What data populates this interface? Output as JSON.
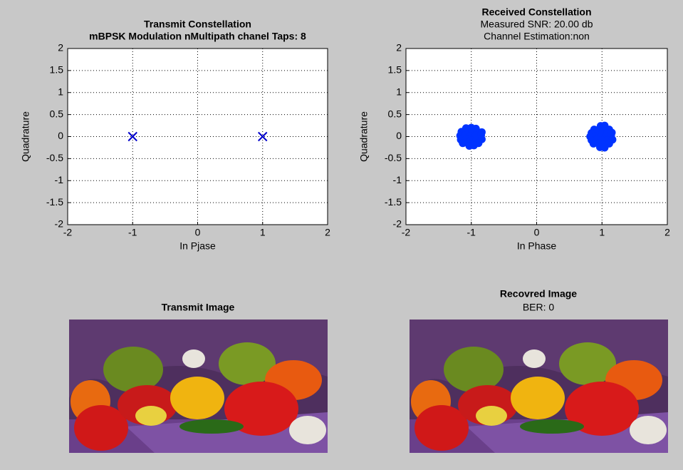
{
  "chart_data": [
    {
      "type": "scatter",
      "title": "Transmit Constellation",
      "subtitles": [
        "mBPSK Modulation nMultipath chanel Taps: 8"
      ],
      "subtitle_bold": true,
      "xlabel": "In Pjase",
      "ylabel": "Quadrature",
      "x": [
        -1,
        1
      ],
      "values": [
        0,
        0
      ],
      "color": "#0000cc",
      "marker": "x",
      "xlim": [
        -2,
        2
      ],
      "xticks": [
        -2,
        -1,
        0,
        1,
        2
      ],
      "ylim": [
        -2,
        2
      ],
      "yticks": [
        -2,
        -1.5,
        -1,
        -0.5,
        0,
        0.5,
        1,
        1.5,
        2
      ],
      "grid": true
    },
    {
      "type": "scatter",
      "title": "Received Constellation",
      "subtitles": [
        "Measured SNR: 20.00 db",
        "Channel Estimation:non"
      ],
      "subtitle_bold": false,
      "xlabel": "In Phase",
      "ylabel": "Quadrature",
      "x": [
        -1.08,
        -1.0,
        -0.93,
        -1.15,
        -1.07,
        -0.99,
        -0.91,
        -0.84,
        -1.17,
        -1.09,
        -1.01,
        -0.93,
        -0.85,
        -1.16,
        -1.08,
        -1.0,
        -0.92,
        -0.84,
        -1.13,
        -1.05,
        -0.97,
        -0.89,
        -1.03,
        -0.96,
        0.98,
        1.04,
        0.88,
        0.96,
        1.04,
        1.11,
        0.84,
        0.92,
        1.0,
        1.08,
        1.15,
        0.82,
        0.9,
        0.98,
        1.06,
        1.14,
        0.84,
        0.92,
        1.0,
        1.08,
        1.16,
        0.87,
        0.95,
        1.03,
        1.11,
        0.97,
        1.04
      ],
      "values": [
        0.19,
        0.2,
        0.18,
        0.11,
        0.12,
        0.1,
        0.11,
        0.1,
        0.02,
        0.03,
        0.01,
        0.02,
        0.03,
        -0.07,
        -0.06,
        -0.08,
        -0.07,
        -0.06,
        -0.15,
        -0.14,
        -0.16,
        -0.15,
        -0.21,
        -0.2,
        0.24,
        0.25,
        0.16,
        0.17,
        0.15,
        0.16,
        0.08,
        0.09,
        0.07,
        0.08,
        0.09,
        0.0,
        0.01,
        -0.01,
        0.0,
        0.01,
        -0.08,
        -0.07,
        -0.09,
        -0.08,
        -0.07,
        -0.16,
        -0.15,
        -0.17,
        -0.16,
        -0.24,
        -0.25
      ],
      "color": "#0033ff",
      "marker": "dot",
      "xlim": [
        -2,
        2
      ],
      "xticks": [
        -2,
        -1,
        0,
        1,
        2
      ],
      "ylim": [
        -2,
        2
      ],
      "yticks": [
        -2,
        -1.5,
        -1,
        -0.5,
        0,
        0.5,
        1,
        1.5,
        2
      ],
      "grid": true
    }
  ],
  "images": [
    {
      "title": "Transmit Image"
    },
    {
      "title": "Recovred Image",
      "subtitle": "BER: 0"
    }
  ]
}
